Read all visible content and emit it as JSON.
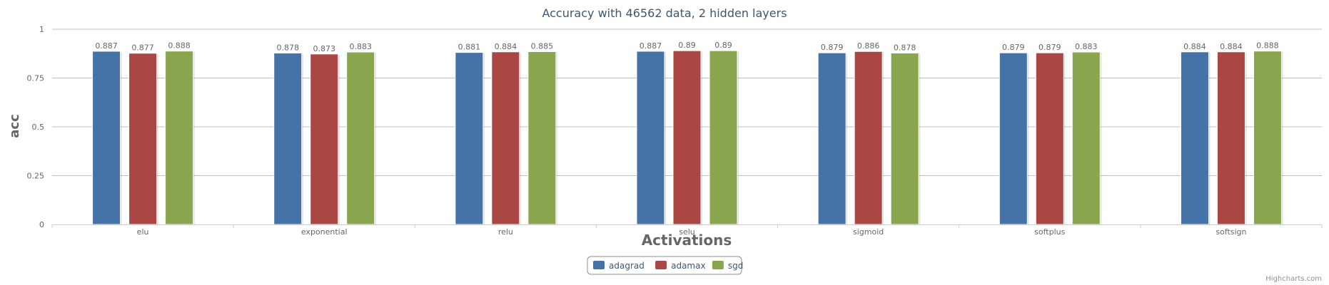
{
  "chart_data": {
    "type": "bar",
    "title": "Accuracy with 46562 data, 2 hidden layers",
    "xlabel": "Activations",
    "ylabel": "acc",
    "ylim": [
      0,
      1
    ],
    "yticks": [
      "0",
      "0.25",
      "0.5",
      "0.75",
      "1"
    ],
    "grid": true,
    "legend_position": "bottom-center",
    "categories": [
      "elu",
      "exponential",
      "relu",
      "selu",
      "sigmoid",
      "softplus",
      "softsign"
    ],
    "series": [
      {
        "name": "adagrad",
        "color": "#4572A7",
        "values": [
          0.887,
          0.878,
          0.881,
          0.887,
          0.879,
          0.879,
          0.884
        ]
      },
      {
        "name": "adamax",
        "color": "#AA4643",
        "values": [
          0.877,
          0.873,
          0.884,
          0.89,
          0.886,
          0.879,
          0.884
        ]
      },
      {
        "name": "sgd",
        "color": "#89A54E",
        "values": [
          0.888,
          0.883,
          0.885,
          0.89,
          0.878,
          0.883,
          0.888
        ]
      }
    ]
  },
  "credit": "Highcharts.com"
}
